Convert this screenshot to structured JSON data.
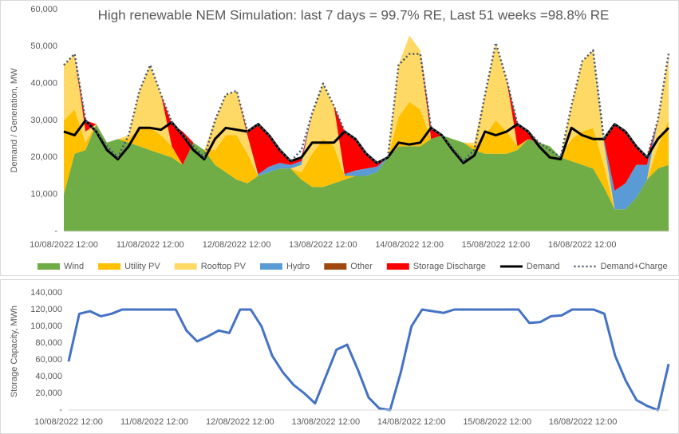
{
  "chart_data": [
    {
      "type": "area",
      "stacked": true,
      "grid": false,
      "title": "High renewable NEM Simulation: last 7 days = 99.7% RE, Last 51 weeks =98.8% RE",
      "y_label": "Demand / Generation, MW",
      "legend": "bottom",
      "categories": [
        "10/08/2022 12:00",
        null,
        null,
        null,
        null,
        null,
        null,
        null,
        "11/08/2022 12:00",
        null,
        null,
        null,
        null,
        null,
        null,
        null,
        "12/08/2022 12:00",
        null,
        null,
        null,
        null,
        null,
        null,
        null,
        "13/08/2022 12:00",
        null,
        null,
        null,
        null,
        null,
        null,
        null,
        "14/08/2022 12:00",
        null,
        null,
        null,
        null,
        null,
        null,
        null,
        "15/08/2022 12:00",
        null,
        null,
        null,
        null,
        null,
        null,
        null,
        "16/08/2022 12:00",
        null,
        null,
        null,
        null,
        null,
        null,
        null,
        null
      ],
      "ylim": [
        0,
        60000
      ],
      "yticks": [
        {
          "value": 0,
          "label": "-"
        },
        {
          "value": 10000,
          "label": "10,000"
        },
        {
          "value": 20000,
          "label": "20,000"
        },
        {
          "value": 30000,
          "label": "30,000"
        },
        {
          "value": 40000,
          "label": "40,000"
        },
        {
          "value": 50000,
          "label": "50,000"
        },
        {
          "value": 60000,
          "label": "60,000"
        }
      ],
      "series": [
        {
          "name": "Wind",
          "type": "area",
          "color": "#70ad47",
          "values": [
            10000,
            21000,
            22000,
            29000,
            24000,
            25000,
            24000,
            23000,
            22000,
            21000,
            20000,
            18000,
            24000,
            22000,
            18000,
            16000,
            14000,
            13000,
            15000,
            16000,
            17000,
            17000,
            14000,
            12000,
            12000,
            13000,
            14000,
            15000,
            15000,
            16000,
            20000,
            23000,
            23000,
            23000,
            25000,
            26000,
            25000,
            24000,
            22000,
            21000,
            21000,
            21000,
            22000,
            25000,
            24000,
            23000,
            20000,
            19000,
            18000,
            17000,
            12000,
            6000,
            6000,
            9000,
            14000,
            17000,
            18000
          ]
        },
        {
          "name": "Utility PV",
          "type": "area",
          "color": "#ffc000",
          "values": [
            20000,
            12000,
            2000,
            0,
            0,
            0,
            1000,
            5000,
            6000,
            5000,
            3000,
            0,
            0,
            0,
            4000,
            10000,
            12000,
            8000,
            0,
            0,
            0,
            0,
            2000,
            9000,
            13000,
            10000,
            1000,
            0,
            0,
            0,
            0,
            8000,
            12000,
            10000,
            0,
            0,
            0,
            0,
            1000,
            5000,
            9000,
            6000,
            1000,
            0,
            0,
            0,
            0,
            6000,
            9000,
            11000,
            6000,
            0,
            0,
            0,
            0,
            6000,
            12000
          ]
        },
        {
          "name": "Rooftop PV",
          "type": "area",
          "color": "#ffd966",
          "values": [
            15000,
            15000,
            3000,
            0,
            0,
            0,
            1000,
            10000,
            17000,
            11000,
            0,
            0,
            0,
            0,
            8000,
            11000,
            12000,
            5000,
            0,
            0,
            0,
            0,
            2000,
            11000,
            15000,
            11000,
            0,
            0,
            0,
            0,
            0,
            14000,
            18000,
            16000,
            0,
            0,
            0,
            0,
            1000,
            11000,
            21000,
            14000,
            0,
            0,
            0,
            0,
            0,
            9000,
            19000,
            21000,
            6000,
            0,
            0,
            0,
            0,
            7000,
            18000
          ]
        },
        {
          "name": "Hydro",
          "type": "area",
          "color": "#5b9bd5",
          "values": [
            0,
            0,
            0,
            0,
            0,
            0,
            0,
            0,
            0,
            0,
            0,
            0,
            0,
            0,
            0,
            0,
            0,
            0,
            500,
            1500,
            1500,
            1000,
            1000,
            0,
            0,
            0,
            500,
            1500,
            2000,
            1500,
            0,
            0,
            0,
            0,
            0,
            0,
            0,
            0,
            0,
            0,
            0,
            0,
            0,
            0,
            0,
            0,
            0,
            0,
            0,
            0,
            1000,
            5000,
            7000,
            9000,
            4000,
            0,
            0
          ]
        },
        {
          "name": "Other",
          "type": "area",
          "color": "#9e480e",
          "values": [
            0,
            0,
            0,
            0,
            0,
            0,
            0,
            0,
            0,
            0,
            0,
            0,
            0,
            0,
            0,
            0,
            0,
            0,
            0,
            0,
            0,
            0,
            0,
            0,
            0,
            0,
            0,
            0,
            0,
            0,
            0,
            0,
            0,
            0,
            0,
            0,
            0,
            0,
            0,
            0,
            0,
            0,
            0,
            0,
            0,
            0,
            0,
            0,
            0,
            0,
            0,
            0,
            0,
            0,
            0,
            0,
            0
          ]
        },
        {
          "name": "Storage Discharge",
          "type": "area",
          "color": "#ff0000",
          "values": [
            0,
            0,
            3000,
            0,
            0,
            0,
            0,
            0,
            0,
            0,
            6000,
            9000,
            0,
            0,
            0,
            0,
            0,
            1000,
            13500,
            8500,
            3500,
            1000,
            1000,
            0,
            0,
            0,
            11500,
            8500,
            4000,
            1000,
            0,
            0,
            0,
            0,
            3000,
            0,
            0,
            0,
            0,
            0,
            0,
            0,
            6000,
            2000,
            0,
            0,
            0,
            0,
            0,
            0,
            0,
            18000,
            14000,
            5000,
            2000,
            0,
            0
          ]
        },
        {
          "name": "Demand",
          "type": "line",
          "color": "#000000",
          "dash": "solid",
          "values": [
            27000,
            26000,
            30000,
            27000,
            22000,
            19500,
            23000,
            28000,
            28000,
            27500,
            29500,
            26000,
            22000,
            19500,
            25000,
            28000,
            27500,
            27000,
            29000,
            26000,
            22000,
            19000,
            20000,
            24000,
            24000,
            24000,
            27000,
            25000,
            21000,
            18500,
            20000,
            24000,
            23500,
            24000,
            28000,
            26000,
            22000,
            18500,
            20500,
            27000,
            26000,
            27000,
            29000,
            27000,
            23000,
            20000,
            19500,
            28000,
            26000,
            25000,
            25000,
            29000,
            27000,
            23000,
            20000,
            25000,
            28000
          ]
        },
        {
          "name": "Demand+Charge",
          "type": "line",
          "color": "#44546a",
          "dash": "dotted",
          "values": [
            45000,
            48000,
            30000,
            27000,
            23000,
            20000,
            26000,
            38000,
            45000,
            37000,
            29500,
            26000,
            23000,
            20000,
            30000,
            37000,
            38000,
            27000,
            29000,
            26000,
            22000,
            19000,
            22000,
            32000,
            40000,
            34000,
            27000,
            25000,
            21000,
            18500,
            20000,
            45000,
            48000,
            48000,
            28000,
            26000,
            22500,
            19000,
            22000,
            37000,
            51000,
            41000,
            29000,
            27000,
            24000,
            22000,
            20000,
            34000,
            46000,
            49000,
            25000,
            29000,
            27000,
            23000,
            20000,
            30000,
            48000
          ]
        }
      ]
    },
    {
      "type": "line",
      "grid": false,
      "y_label": "Storage Capacity, MWh",
      "categories": [
        "10/08/2022 12:00",
        null,
        null,
        null,
        null,
        null,
        null,
        null,
        "11/08/2022 12:00",
        null,
        null,
        null,
        null,
        null,
        null,
        null,
        "12/08/2022 12:00",
        null,
        null,
        null,
        null,
        null,
        null,
        null,
        "13/08/2022 12:00",
        null,
        null,
        null,
        null,
        null,
        null,
        null,
        "14/08/2022 12:00",
        null,
        null,
        null,
        null,
        null,
        null,
        null,
        "15/08/2022 12:00",
        null,
        null,
        null,
        null,
        null,
        null,
        null,
        "16/08/2022 12:00",
        null,
        null,
        null,
        null,
        null,
        null,
        null,
        null
      ],
      "ylim": [
        0,
        140000
      ],
      "yticks": [
        {
          "value": 0,
          "label": "-"
        },
        {
          "value": 20000,
          "label": "20,000"
        },
        {
          "value": 40000,
          "label": "40,000"
        },
        {
          "value": 60000,
          "label": "60,000"
        },
        {
          "value": 80000,
          "label": "80,000"
        },
        {
          "value": 100000,
          "label": "100,000"
        },
        {
          "value": 120000,
          "label": "120,000"
        },
        {
          "value": 140000,
          "label": "140,000"
        }
      ],
      "color": "#4472c4",
      "values": [
        58000,
        115000,
        118000,
        112000,
        115000,
        120000,
        120000,
        120000,
        120000,
        120000,
        120000,
        95000,
        82000,
        88000,
        95000,
        92000,
        120000,
        120000,
        100000,
        65000,
        45000,
        30000,
        20000,
        8000,
        40000,
        72000,
        78000,
        48000,
        15000,
        2000,
        0,
        45000,
        100000,
        120000,
        118000,
        116000,
        120000,
        120000,
        120000,
        120000,
        120000,
        120000,
        120000,
        104000,
        105000,
        112000,
        113000,
        120000,
        120000,
        120000,
        115000,
        65000,
        35000,
        12000,
        5000,
        0,
        55000
      ]
    }
  ]
}
